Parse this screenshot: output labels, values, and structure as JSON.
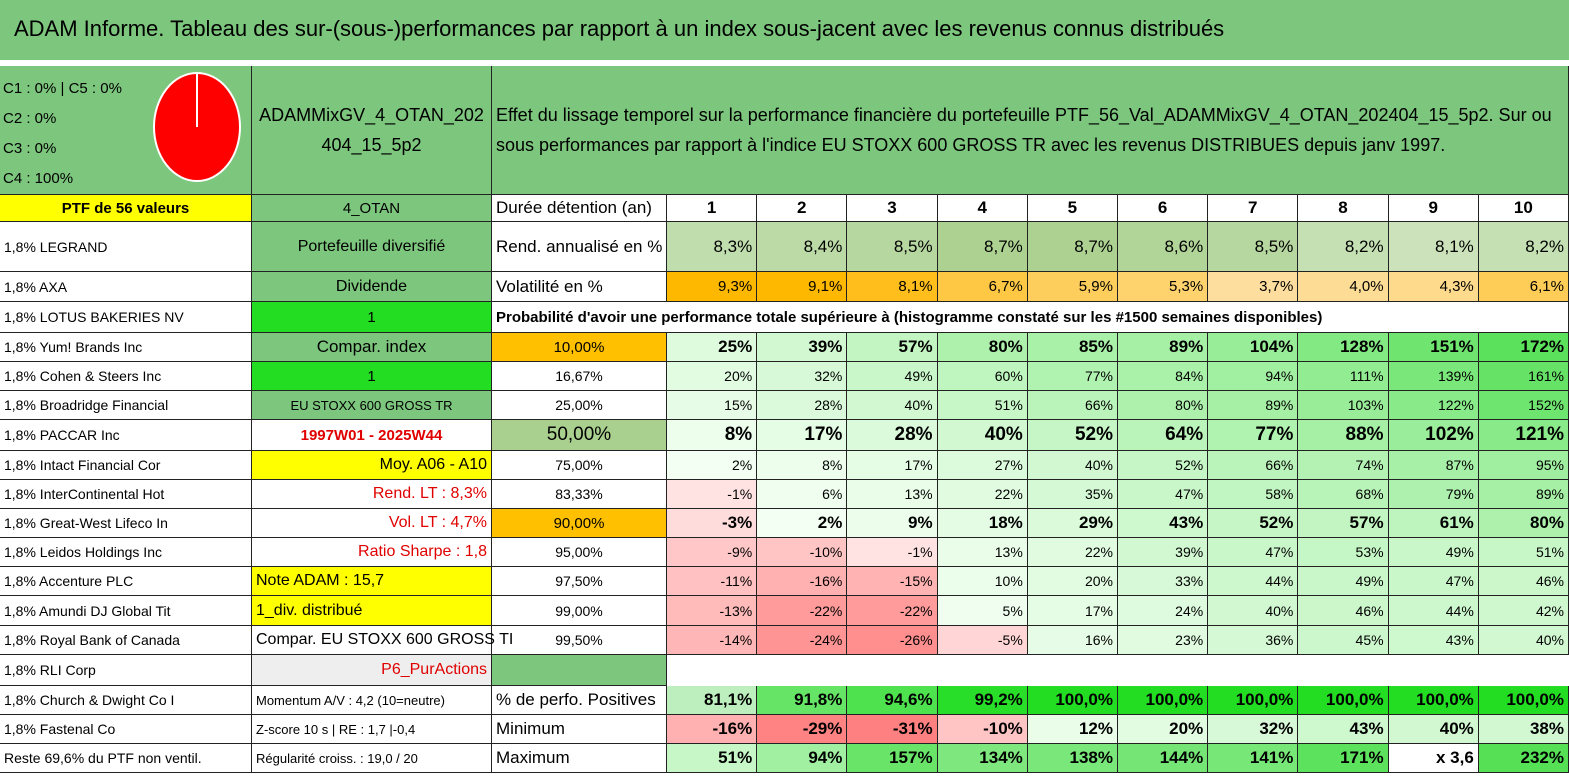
{
  "title": "ADAM Informe. Tableau des sur-(sous-)performances par rapport à un index sous-jacent avec les revenus connus distribués",
  "legend": [
    "C1 : 0% | C5 : 0%",
    "C2 : 0%",
    "C3 : 0%",
    "C4 : 100%"
  ],
  "portfolio_name": "ADAMMixGV_4_OTAN_202404_15_5p2",
  "description": "Effet du lissage temporel sur la performance financière du portefeuille PTF_56_Val_ADAMMixGV_4_OTAN_202404_15_5p2. Sur ou sous performances par rapport à l'indice EU STOXX 600 GROSS TR avec les revenus DISTRIBUES depuis janv 1997.",
  "header": {
    "label": "PTF de 56 valeurs",
    "info": "4_OTAN",
    "key": "Durée détention (an)",
    "values": [
      1,
      2,
      3,
      4,
      5,
      6,
      7,
      8,
      9,
      10
    ]
  },
  "rows": [
    {
      "label": "1,8% LEGRAND",
      "info": "Portefeuille diversifié",
      "key": "Rend. annualisé en %",
      "values": [
        "8,3%",
        "8,4%",
        "8,5%",
        "8,7%",
        "8,7%",
        "8,6%",
        "8,5%",
        "8,2%",
        "8,1%",
        "8,2%"
      ]
    },
    {
      "label": "1,8% AXA",
      "info": "Dividende",
      "key": "Volatilité en %",
      "values": [
        "9,3%",
        "9,1%",
        "8,1%",
        "6,7%",
        "5,9%",
        "5,3%",
        "3,7%",
        "4,0%",
        "4,3%",
        "6,1%"
      ]
    },
    {
      "label": "1,8% LOTUS BAKERIES NV",
      "info": "1",
      "note": "Probabilité d'avoir une performance totale supérieure à (histogramme constaté sur les #1500 semaines disponibles)"
    },
    {
      "label": "1,8% Yum! Brands Inc",
      "info": "Compar. index",
      "key": "10,00%",
      "values": [
        "25%",
        "39%",
        "57%",
        "80%",
        "85%",
        "89%",
        "104%",
        "128%",
        "151%",
        "172%"
      ]
    },
    {
      "label": "1,8% Cohen & Steers Inc",
      "info": "1",
      "key": "16,67%",
      "values": [
        "20%",
        "32%",
        "49%",
        "60%",
        "77%",
        "84%",
        "94%",
        "111%",
        "139%",
        "161%"
      ]
    },
    {
      "label": "1,8% Broadridge Financial",
      "info": "EU STOXX 600 GROSS TR",
      "key": "25,00%",
      "values": [
        "15%",
        "28%",
        "40%",
        "51%",
        "66%",
        "80%",
        "89%",
        "103%",
        "122%",
        "152%"
      ]
    },
    {
      "label": "1,8% PACCAR Inc",
      "info": "1997W01 - 2025W44",
      "key": "50,00%",
      "values": [
        "8%",
        "17%",
        "28%",
        "40%",
        "52%",
        "64%",
        "77%",
        "88%",
        "102%",
        "121%"
      ]
    },
    {
      "label": "1,8% Intact Financial Cor",
      "info": "Moy. A06 - A10",
      "key": "75,00%",
      "values": [
        "2%",
        "8%",
        "17%",
        "27%",
        "40%",
        "52%",
        "66%",
        "74%",
        "87%",
        "95%"
      ]
    },
    {
      "label": "1,8% InterContinental Hot",
      "info": "Rend. LT : 8,3%",
      "key": "83,33%",
      "values": [
        "-1%",
        "6%",
        "13%",
        "22%",
        "35%",
        "47%",
        "58%",
        "68%",
        "79%",
        "89%"
      ]
    },
    {
      "label": "1,8% Great-West Lifeco In",
      "info": "Vol. LT : 4,7%",
      "key": "90,00%",
      "values": [
        "-3%",
        "2%",
        "9%",
        "18%",
        "29%",
        "43%",
        "52%",
        "57%",
        "61%",
        "80%"
      ]
    },
    {
      "label": "1,8% Leidos Holdings Inc",
      "info": "Ratio Sharpe : 1,8",
      "key": "95,00%",
      "values": [
        "-9%",
        "-10%",
        "-1%",
        "13%",
        "22%",
        "39%",
        "47%",
        "53%",
        "49%",
        "51%"
      ]
    },
    {
      "label": "1,8% Accenture PLC",
      "info": "Note ADAM : 15,7",
      "key": "97,50%",
      "values": [
        "-11%",
        "-16%",
        "-15%",
        "10%",
        "20%",
        "33%",
        "44%",
        "49%",
        "47%",
        "46%"
      ]
    },
    {
      "label": "1,8% Amundi DJ Global Tit",
      "info": "1_div. distribué",
      "key": "99,00%",
      "values": [
        "-13%",
        "-22%",
        "-22%",
        "5%",
        "17%",
        "24%",
        "40%",
        "46%",
        "44%",
        "42%"
      ]
    },
    {
      "label": "1,8% Royal Bank of Canada",
      "info": "Compar. EU STOXX 600 GROSS TI",
      "key": "99,50%",
      "values": [
        "-14%",
        "-24%",
        "-26%",
        "-5%",
        "16%",
        "23%",
        "36%",
        "45%",
        "43%",
        "40%"
      ]
    },
    {
      "label": "1,8% RLI Corp",
      "info": "P6_PurActions"
    },
    {
      "label": "1,8% Church & Dwight Co I",
      "info": "Momentum A/V : 4,2 (10=neutre)",
      "key": "% de perfo. Positives",
      "values": [
        "81,1%",
        "91,8%",
        "94,6%",
        "99,2%",
        "100,0%",
        "100,0%",
        "100,0%",
        "100,0%",
        "100,0%",
        "100,0%"
      ]
    },
    {
      "label": "1,8% Fastenal Co",
      "info": "Z-score 10 s | RE : 1,7 |-0,4",
      "key": "Minimum",
      "values": [
        "-16%",
        "-29%",
        "-31%",
        "-10%",
        "12%",
        "20%",
        "32%",
        "43%",
        "40%",
        "38%"
      ]
    },
    {
      "label": "Reste 69,6% du PTF non ventil.",
      "info": "Régularité croiss. : 19,0 / 20",
      "key": "Maximum",
      "values": [
        "51%",
        "94%",
        "157%",
        "134%",
        "138%",
        "144%",
        "141%",
        "171%",
        "x 3,6",
        "232%"
      ]
    }
  ]
}
